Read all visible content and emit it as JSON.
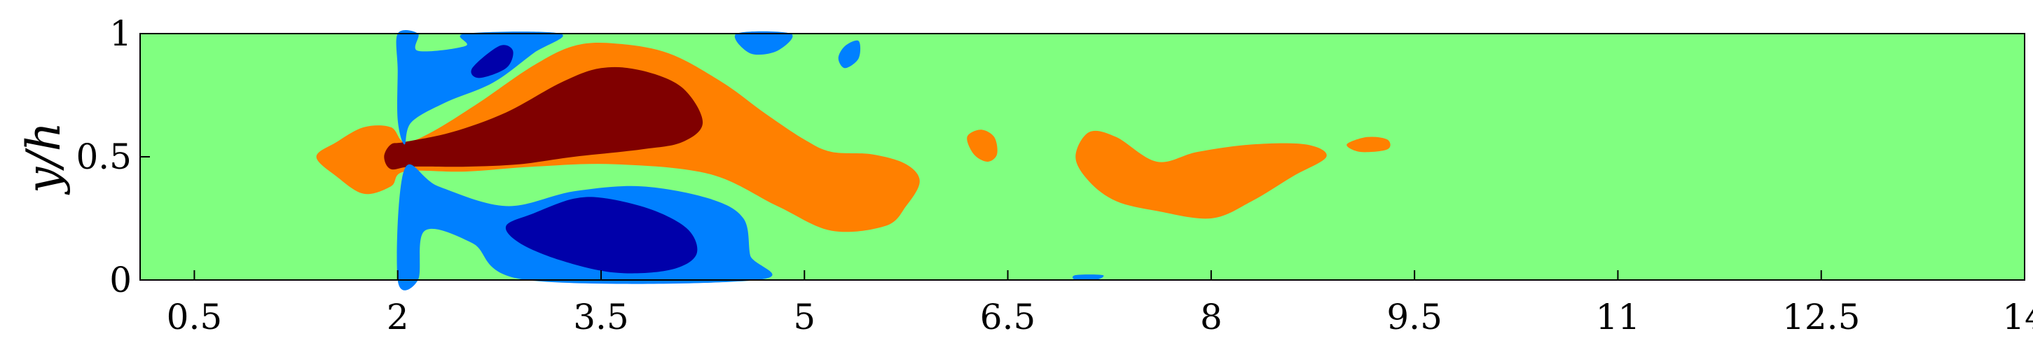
{
  "chart_data": {
    "type": "heatmap",
    "title": "",
    "xlabel": "",
    "ylabel": "y/h",
    "xlim": [
      0.1,
      14
    ],
    "ylim": [
      0,
      1
    ],
    "x_ticks": [
      "0.5",
      "2",
      "3.5",
      "5",
      "6.5",
      "8",
      "9.5",
      "11",
      "12.5",
      "14"
    ],
    "x_tick_values": [
      0.5,
      2,
      3.5,
      5,
      6.5,
      8,
      9.5,
      11,
      12.5,
      14
    ],
    "y_ticks": [
      "0",
      "0.5",
      "1"
    ],
    "y_tick_values": [
      0,
      0.5,
      1
    ],
    "colormap": "jet",
    "grid": false,
    "colors": {
      "background": "#80ff80",
      "strong_positive": "#800000",
      "positive": "#ff8000",
      "negative": "#0080ff",
      "strong_negative": "#0000aa"
    },
    "regions": [
      {
        "level": "positive",
        "points": [
          [
            1.4,
            0.5
          ],
          [
            1.55,
            0.56
          ],
          [
            1.75,
            0.62
          ],
          [
            1.95,
            0.62
          ],
          [
            2.05,
            0.56
          ],
          [
            2.25,
            0.6
          ],
          [
            2.6,
            0.72
          ],
          [
            3.0,
            0.87
          ],
          [
            3.3,
            0.95
          ],
          [
            3.6,
            0.96
          ],
          [
            4.0,
            0.92
          ],
          [
            4.4,
            0.8
          ],
          [
            4.7,
            0.68
          ],
          [
            5.0,
            0.57
          ],
          [
            5.2,
            0.52
          ],
          [
            5.5,
            0.51
          ],
          [
            5.75,
            0.47
          ],
          [
            5.85,
            0.4
          ],
          [
            5.75,
            0.3
          ],
          [
            5.6,
            0.22
          ],
          [
            5.2,
            0.2
          ],
          [
            4.8,
            0.3
          ],
          [
            4.3,
            0.43
          ],
          [
            3.6,
            0.47
          ],
          [
            3.0,
            0.46
          ],
          [
            2.5,
            0.44
          ],
          [
            2.05,
            0.44
          ],
          [
            1.95,
            0.38
          ],
          [
            1.75,
            0.35
          ],
          [
            1.55,
            0.42
          ]
        ]
      },
      {
        "level": "positive",
        "points": [
          [
            7.0,
            0.5
          ],
          [
            7.1,
            0.6
          ],
          [
            7.3,
            0.58
          ],
          [
            7.6,
            0.48
          ],
          [
            7.9,
            0.52
          ],
          [
            8.3,
            0.55
          ],
          [
            8.7,
            0.55
          ],
          [
            8.85,
            0.5
          ],
          [
            8.6,
            0.42
          ],
          [
            8.3,
            0.32
          ],
          [
            8.0,
            0.25
          ],
          [
            7.6,
            0.28
          ],
          [
            7.3,
            0.32
          ],
          [
            7.1,
            0.4
          ]
        ]
      },
      {
        "level": "positive",
        "points": [
          [
            6.2,
            0.58
          ],
          [
            6.3,
            0.61
          ],
          [
            6.4,
            0.58
          ],
          [
            6.42,
            0.51
          ],
          [
            6.35,
            0.48
          ],
          [
            6.25,
            0.51
          ]
        ]
      },
      {
        "level": "positive",
        "points": [
          [
            9.0,
            0.55
          ],
          [
            9.15,
            0.58
          ],
          [
            9.3,
            0.57
          ],
          [
            9.3,
            0.53
          ],
          [
            9.1,
            0.52
          ]
        ]
      },
      {
        "level": "strong_positive",
        "points": [
          [
            1.95,
            0.55
          ],
          [
            2.05,
            0.56
          ],
          [
            2.4,
            0.6
          ],
          [
            2.8,
            0.68
          ],
          [
            3.2,
            0.8
          ],
          [
            3.5,
            0.86
          ],
          [
            3.8,
            0.85
          ],
          [
            4.1,
            0.78
          ],
          [
            4.25,
            0.64
          ],
          [
            4.1,
            0.56
          ],
          [
            3.8,
            0.53
          ],
          [
            3.3,
            0.5
          ],
          [
            2.9,
            0.47
          ],
          [
            2.5,
            0.46
          ],
          [
            2.1,
            0.46
          ],
          [
            1.95,
            0.45
          ],
          [
            1.9,
            0.5
          ]
        ]
      },
      {
        "level": "negative",
        "points": [
          [
            2.0,
            1.0
          ],
          [
            2.15,
            1.0
          ],
          [
            2.15,
            0.93
          ],
          [
            2.5,
            0.95
          ],
          [
            2.5,
            1.0
          ],
          [
            3.2,
            1.0
          ],
          [
            3.0,
            0.92
          ],
          [
            2.7,
            0.8
          ],
          [
            2.35,
            0.72
          ],
          [
            2.1,
            0.64
          ],
          [
            2.05,
            0.55
          ],
          [
            2.0,
            0.65
          ],
          [
            2.0,
            0.85
          ]
        ]
      },
      {
        "level": "negative",
        "points": [
          [
            2.0,
            0.0
          ],
          [
            2.05,
            0.45
          ],
          [
            2.3,
            0.38
          ],
          [
            2.8,
            0.3
          ],
          [
            3.3,
            0.36
          ],
          [
            3.8,
            0.38
          ],
          [
            4.3,
            0.33
          ],
          [
            4.55,
            0.25
          ],
          [
            4.6,
            0.1
          ],
          [
            4.65,
            0.0
          ],
          [
            2.95,
            0.0
          ],
          [
            2.55,
            0.15
          ],
          [
            2.2,
            0.2
          ],
          [
            2.15,
            0.0
          ]
        ]
      },
      {
        "level": "negative",
        "points": [
          [
            4.5,
            1.0
          ],
          [
            4.9,
            1.0
          ],
          [
            4.8,
            0.93
          ],
          [
            4.6,
            0.92
          ]
        ]
      },
      {
        "level": "negative",
        "points": [
          [
            5.3,
            0.95
          ],
          [
            5.4,
            0.97
          ],
          [
            5.4,
            0.9
          ],
          [
            5.3,
            0.86
          ],
          [
            5.25,
            0.9
          ]
        ]
      },
      {
        "level": "negative",
        "points": [
          [
            7.0,
            0.02
          ],
          [
            7.2,
            0.02
          ],
          [
            7.15,
            0.0
          ],
          [
            7.0,
            0.0
          ]
        ]
      },
      {
        "level": "strong_negative",
        "points": [
          [
            2.55,
            0.86
          ],
          [
            2.75,
            0.95
          ],
          [
            2.85,
            0.93
          ],
          [
            2.8,
            0.86
          ],
          [
            2.6,
            0.82
          ]
        ]
      },
      {
        "level": "strong_negative",
        "points": [
          [
            2.8,
            0.22
          ],
          [
            3.0,
            0.27
          ],
          [
            3.3,
            0.33
          ],
          [
            3.55,
            0.33
          ],
          [
            3.9,
            0.28
          ],
          [
            4.15,
            0.2
          ],
          [
            4.2,
            0.1
          ],
          [
            4.0,
            0.04
          ],
          [
            3.6,
            0.03
          ],
          [
            3.2,
            0.08
          ],
          [
            2.9,
            0.15
          ]
        ]
      }
    ]
  }
}
